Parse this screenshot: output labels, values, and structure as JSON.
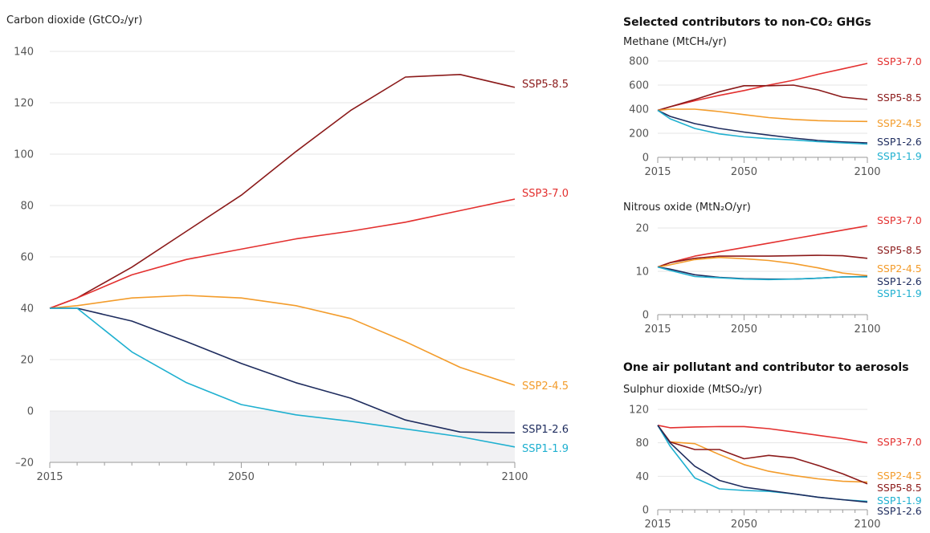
{
  "colors": {
    "SSP5-8.5": "#8b1a1a",
    "SSP3-7.0": "#e3302f",
    "SSP2-4.5": "#f39c2b",
    "SSP1-2.6": "#1e2c5e",
    "SSP1-1.9": "#1fb0d0",
    "grid": "#e4e4e4",
    "axis": "#9a9a9a",
    "negative_fill": "#f1f1f3"
  },
  "chart_data": [
    {
      "id": "co2",
      "type": "line",
      "title": "",
      "ylabel": "Carbon dioxide (GtCO₂/yr)",
      "xlabel": "",
      "xlim": [
        2015,
        2100
      ],
      "ylim": [
        -20,
        140
      ],
      "xticks": [
        "2015",
        "2050",
        "2100"
      ],
      "yticks": [
        "140",
        "120",
        "100",
        "80",
        "60",
        "40",
        "20",
        "0",
        "–20"
      ],
      "grid": true,
      "negative_region_shaded": true,
      "series": [
        {
          "name": "SSP5-8.5",
          "x": [
            2015,
            2020,
            2030,
            2040,
            2050,
            2060,
            2070,
            2080,
            2090,
            2100
          ],
          "y": [
            40,
            44,
            56,
            70,
            84,
            101,
            117,
            130,
            131,
            126
          ]
        },
        {
          "name": "SSP3-7.0",
          "x": [
            2015,
            2020,
            2030,
            2040,
            2050,
            2060,
            2070,
            2080,
            2090,
            2100
          ],
          "y": [
            40,
            44,
            53,
            59,
            63,
            67,
            70,
            73.5,
            78,
            82.5
          ]
        },
        {
          "name": "SSP2-4.5",
          "x": [
            2015,
            2020,
            2030,
            2040,
            2050,
            2060,
            2070,
            2080,
            2090,
            2100
          ],
          "y": [
            40,
            41,
            44,
            45,
            44,
            41,
            36,
            27,
            17,
            10
          ]
        },
        {
          "name": "SSP1-2.6",
          "x": [
            2015,
            2020,
            2030,
            2040,
            2050,
            2060,
            2070,
            2080,
            2090,
            2100
          ],
          "y": [
            40,
            40,
            35,
            27,
            18.5,
            11,
            5,
            -3.5,
            -8.2,
            -8.5
          ]
        },
        {
          "name": "SSP1-1.9",
          "x": [
            2015,
            2020,
            2030,
            2040,
            2050,
            2060,
            2070,
            2080,
            2090,
            2100
          ],
          "y": [
            40,
            40,
            23,
            11,
            2.5,
            -1.5,
            -4,
            -7,
            -10,
            -14
          ]
        }
      ]
    },
    {
      "id": "methane",
      "type": "line",
      "title": "Selected contributors to non-CO₂ GHGs",
      "ylabel": "Methane (MtCH₄/yr)",
      "xlabel": "",
      "xlim": [
        2015,
        2100
      ],
      "ylim": [
        0,
        800
      ],
      "xticks": [
        "2015",
        "2050",
        "2100"
      ],
      "yticks": [
        "800",
        "600",
        "400",
        "200",
        "0"
      ],
      "grid": true,
      "series": [
        {
          "name": "SSP3-7.0",
          "x": [
            2015,
            2020,
            2030,
            2040,
            2050,
            2060,
            2070,
            2080,
            2090,
            2100
          ],
          "y": [
            390,
            420,
            470,
            515,
            555,
            600,
            640,
            690,
            735,
            780
          ]
        },
        {
          "name": "SSP5-8.5",
          "x": [
            2015,
            2020,
            2030,
            2040,
            2050,
            2060,
            2070,
            2080,
            2090,
            2100
          ],
          "y": [
            390,
            420,
            480,
            545,
            595,
            595,
            600,
            560,
            500,
            480
          ]
        },
        {
          "name": "SSP2-4.5",
          "x": [
            2015,
            2020,
            2030,
            2040,
            2050,
            2060,
            2070,
            2080,
            2090,
            2100
          ],
          "y": [
            390,
            400,
            400,
            380,
            355,
            330,
            315,
            305,
            300,
            298
          ]
        },
        {
          "name": "SSP1-2.6",
          "x": [
            2015,
            2020,
            2030,
            2040,
            2050,
            2060,
            2070,
            2080,
            2090,
            2100
          ],
          "y": [
            390,
            340,
            280,
            240,
            210,
            185,
            160,
            140,
            128,
            120
          ]
        },
        {
          "name": "SSP1-1.9",
          "x": [
            2015,
            2020,
            2030,
            2040,
            2050,
            2060,
            2070,
            2080,
            2090,
            2100
          ],
          "y": [
            390,
            320,
            240,
            195,
            170,
            155,
            145,
            130,
            120,
            110
          ]
        }
      ]
    },
    {
      "id": "n2o",
      "type": "line",
      "ylabel": "Nitrous oxide (MtN₂O/yr)",
      "xlabel": "",
      "xlim": [
        2015,
        2100
      ],
      "ylim": [
        0,
        20
      ],
      "xticks": [
        "2015",
        "2050",
        "2100"
      ],
      "yticks": [
        "20",
        "10",
        "0"
      ],
      "grid": true,
      "series": [
        {
          "name": "SSP3-7.0",
          "x": [
            2015,
            2020,
            2030,
            2040,
            2050,
            2060,
            2070,
            2080,
            2090,
            2100
          ],
          "y": [
            11,
            12,
            13.5,
            14.5,
            15.5,
            16.5,
            17.5,
            18.5,
            19.5,
            20.5
          ]
        },
        {
          "name": "SSP5-8.5",
          "x": [
            2015,
            2020,
            2030,
            2040,
            2050,
            2060,
            2070,
            2080,
            2090,
            2100
          ],
          "y": [
            11,
            12,
            13,
            13.5,
            13.5,
            13.5,
            13.6,
            13.7,
            13.6,
            13
          ]
        },
        {
          "name": "SSP2-4.5",
          "x": [
            2015,
            2020,
            2030,
            2040,
            2050,
            2060,
            2070,
            2080,
            2090,
            2100
          ],
          "y": [
            11,
            11.5,
            12.7,
            13.2,
            12.9,
            12.5,
            11.8,
            10.8,
            9.6,
            9
          ]
        },
        {
          "name": "SSP1-2.6",
          "x": [
            2015,
            2020,
            2030,
            2040,
            2050,
            2060,
            2070,
            2080,
            2090,
            2100
          ],
          "y": [
            11,
            10.5,
            9.2,
            8.6,
            8.3,
            8.2,
            8.2,
            8.4,
            8.7,
            8.8
          ]
        },
        {
          "name": "SSP1-1.9",
          "x": [
            2015,
            2020,
            2030,
            2040,
            2050,
            2060,
            2070,
            2080,
            2090,
            2100
          ],
          "y": [
            11,
            10.2,
            8.8,
            8.5,
            8.2,
            8.1,
            8.2,
            8.4,
            8.7,
            8.7
          ]
        }
      ]
    },
    {
      "id": "so2",
      "type": "line",
      "title": "One air pollutant and contributor to aerosols",
      "ylabel": "Sulphur dioxide (MtSO₂/yr)",
      "xlabel": "",
      "xlim": [
        2015,
        2100
      ],
      "ylim": [
        0,
        120
      ],
      "xticks": [
        "2015",
        "2050",
        "2100"
      ],
      "yticks": [
        "120",
        "80",
        "40",
        "0"
      ],
      "grid": true,
      "series": [
        {
          "name": "SSP3-7.0",
          "x": [
            2015,
            2020,
            2030,
            2040,
            2050,
            2060,
            2070,
            2080,
            2090,
            2100
          ],
          "y": [
            101,
            98,
            99,
            99.5,
            99.5,
            97,
            93,
            89,
            85,
            80
          ]
        },
        {
          "name": "SSP2-4.5",
          "x": [
            2015,
            2020,
            2030,
            2040,
            2050,
            2060,
            2070,
            2080,
            2090,
            2100
          ],
          "y": [
            101,
            81,
            79,
            66,
            54,
            46,
            41,
            37,
            34,
            33
          ]
        },
        {
          "name": "SSP5-8.5",
          "x": [
            2015,
            2020,
            2030,
            2040,
            2050,
            2060,
            2070,
            2080,
            2090,
            2100
          ],
          "y": [
            101,
            81,
            72,
            72,
            61,
            65,
            62,
            53,
            43,
            31
          ]
        },
        {
          "name": "SSP1-1.9",
          "x": [
            2015,
            2020,
            2030,
            2040,
            2050,
            2060,
            2070,
            2080,
            2090,
            2100
          ],
          "y": [
            101,
            76,
            38,
            25,
            23,
            22,
            19,
            15,
            12,
            10
          ]
        },
        {
          "name": "SSP1-2.6",
          "x": [
            2015,
            2020,
            2030,
            2040,
            2050,
            2060,
            2070,
            2080,
            2090,
            2100
          ],
          "y": [
            101,
            80,
            52,
            35,
            27,
            23,
            19,
            15,
            12,
            9
          ]
        }
      ]
    }
  ]
}
